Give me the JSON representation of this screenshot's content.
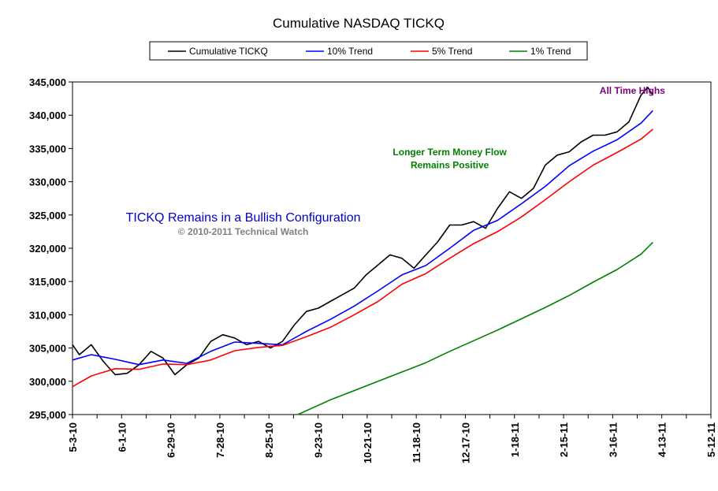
{
  "chart_data": {
    "type": "line",
    "title": "Cumulative NASDAQ TICKQ",
    "xlabel": "",
    "ylabel": "",
    "ylim": [
      295000,
      345000
    ],
    "yticks": [
      "295,000",
      "300,000",
      "305,000",
      "310,000",
      "315,000",
      "320,000",
      "325,000",
      "330,000",
      "335,000",
      "340,000",
      "345,000"
    ],
    "xlim": [
      "2010-05-03",
      "2011-05-12"
    ],
    "xticks": [
      "5-3-10",
      "6-1-10",
      "6-29-10",
      "7-28-10",
      "8-25-10",
      "9-23-10",
      "10-21-10",
      "11-18-10",
      "12-17-10",
      "1-18-11",
      "2-15-11",
      "3-16-11",
      "4-13-11",
      "5-12-11"
    ],
    "legend": {
      "position": "top",
      "entries": [
        "Cumulative TICKQ",
        "10% Trend",
        "5% Trend",
        "1% Trend"
      ]
    },
    "series": [
      {
        "name": "Cumulative TICKQ",
        "color": "#000000",
        "x": [
          "2010-05-03",
          "2010-05-07",
          "2010-05-14",
          "2010-05-21",
          "2010-05-28",
          "2010-06-04",
          "2010-06-11",
          "2010-06-18",
          "2010-06-25",
          "2010-07-02",
          "2010-07-09",
          "2010-07-16",
          "2010-07-23",
          "2010-07-30",
          "2010-08-06",
          "2010-08-13",
          "2010-08-20",
          "2010-08-27",
          "2010-09-03",
          "2010-09-10",
          "2010-09-17",
          "2010-09-24",
          "2010-10-01",
          "2010-10-08",
          "2010-10-15",
          "2010-10-22",
          "2010-10-29",
          "2010-11-05",
          "2010-11-12",
          "2010-11-19",
          "2010-11-26",
          "2010-12-03",
          "2010-12-10",
          "2010-12-17",
          "2010-12-24",
          "2010-12-31",
          "2011-01-07",
          "2011-01-14",
          "2011-01-21",
          "2011-01-28",
          "2011-02-04",
          "2011-02-11",
          "2011-02-18",
          "2011-02-25",
          "2011-03-04",
          "2011-03-11",
          "2011-03-18",
          "2011-03-25",
          "2011-04-01",
          "2011-04-05",
          "2011-04-08"
        ],
        "values": [
          305500,
          304000,
          305500,
          303000,
          301000,
          301200,
          302500,
          304500,
          303500,
          301000,
          302500,
          303500,
          306000,
          307000,
          306500,
          305500,
          306000,
          305000,
          306000,
          308500,
          310500,
          311000,
          312000,
          313000,
          314000,
          316000,
          317500,
          319000,
          318500,
          317000,
          319000,
          321000,
          323500,
          323500,
          324000,
          323000,
          326000,
          328500,
          327500,
          329000,
          332500,
          334000,
          334500,
          336000,
          337000,
          337000,
          337500,
          339000,
          343000,
          344200,
          343000
        ]
      },
      {
        "name": "10% Trend",
        "color": "#0000ff",
        "x": [
          "2010-05-03",
          "2010-05-14",
          "2010-05-28",
          "2010-06-11",
          "2010-06-25",
          "2010-07-09",
          "2010-07-23",
          "2010-08-06",
          "2010-08-20",
          "2010-09-03",
          "2010-09-17",
          "2010-10-01",
          "2010-10-15",
          "2010-10-29",
          "2010-11-12",
          "2010-11-26",
          "2010-12-10",
          "2010-12-24",
          "2011-01-07",
          "2011-01-21",
          "2011-02-04",
          "2011-02-18",
          "2011-03-04",
          "2011-03-18",
          "2011-04-01",
          "2011-04-08"
        ],
        "values": [
          303200,
          304000,
          303300,
          302500,
          303200,
          302700,
          304500,
          305900,
          305700,
          305500,
          307500,
          309300,
          311300,
          313600,
          316000,
          317400,
          320000,
          322700,
          324200,
          326700,
          329300,
          332400,
          334600,
          336300,
          338800,
          340700
        ]
      },
      {
        "name": "5% Trend",
        "color": "#ff0000",
        "x": [
          "2010-05-03",
          "2010-05-14",
          "2010-05-28",
          "2010-06-11",
          "2010-06-25",
          "2010-07-09",
          "2010-07-23",
          "2010-08-06",
          "2010-08-20",
          "2010-09-03",
          "2010-09-17",
          "2010-10-01",
          "2010-10-15",
          "2010-10-29",
          "2010-11-12",
          "2010-11-26",
          "2010-12-10",
          "2010-12-24",
          "2011-01-07",
          "2011-01-21",
          "2011-02-04",
          "2011-02-18",
          "2011-03-04",
          "2011-03-18",
          "2011-04-01",
          "2011-04-08"
        ],
        "values": [
          299200,
          300800,
          301900,
          301800,
          302600,
          302500,
          303200,
          304600,
          305100,
          305400,
          306700,
          308100,
          310000,
          312000,
          314600,
          316200,
          318500,
          320700,
          322500,
          324700,
          327300,
          330000,
          332500,
          334400,
          336400,
          337900
        ]
      },
      {
        "name": "1% Trend",
        "color": "#008000",
        "x": [
          "2010-09-12",
          "2010-10-01",
          "2010-10-15",
          "2010-10-29",
          "2010-11-12",
          "2010-11-26",
          "2010-12-10",
          "2010-12-24",
          "2011-01-07",
          "2011-01-21",
          "2011-02-04",
          "2011-02-18",
          "2011-03-04",
          "2011-03-18",
          "2011-04-01",
          "2011-04-08"
        ],
        "values": [
          295000,
          297200,
          298600,
          300000,
          301400,
          302800,
          304500,
          306100,
          307700,
          309400,
          311100,
          312900,
          314900,
          316800,
          319100,
          320900
        ]
      }
    ],
    "annotations": [
      {
        "text": "All Time Highs",
        "x": "2011-03-27",
        "y": 343200
      },
      {
        "text": "Longer Term Money Flow",
        "x": "2010-12-10",
        "y": 334000
      },
      {
        "text": "Remains Positive",
        "x": "2010-12-10",
        "y": 332000
      },
      {
        "text": "TICKQ Remains in a Bullish Configuration",
        "x": "2010-08-11",
        "y": 324000
      },
      {
        "text": "© 2010-2011 Technical Watch",
        "x": "2010-08-11",
        "y": 322000
      }
    ]
  }
}
